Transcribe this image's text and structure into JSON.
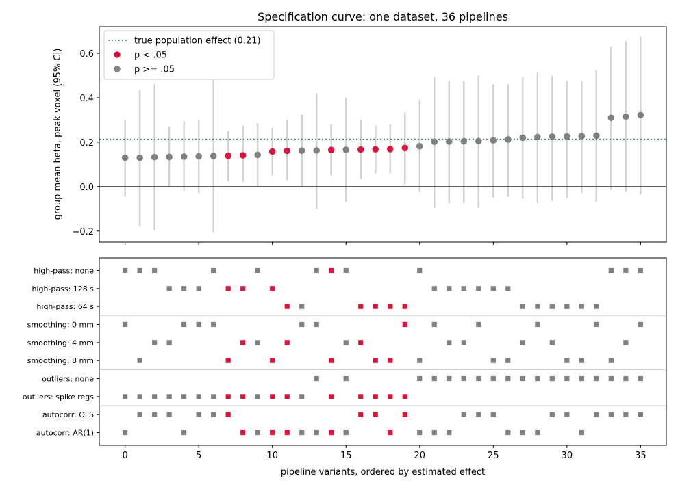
{
  "chart_data": [
    {
      "type": "scatter",
      "title": "Specification curve: one dataset, 36 pipelines",
      "ylabel": "group mean beta, peak voxel (95% CI)",
      "ylim": [
        -0.25,
        0.72
      ],
      "yticks": [
        -0.2,
        0.0,
        0.2,
        0.4,
        0.6
      ],
      "ytick_labels": [
        "−0.2",
        "0.0",
        "0.2",
        "0.4",
        "0.6"
      ],
      "xlim": [
        -1.75,
        36.75
      ],
      "grid": false,
      "legend_position": "top-left",
      "reference_line": {
        "label": "true population effect (0.21)",
        "value": 0.213,
        "color": "#2e8b57",
        "style": "dotted"
      },
      "zero_line": 0.0,
      "legend": [
        {
          "label": "true population effect (0.21)",
          "marker": "dotted-line",
          "color": "#2e8b57"
        },
        {
          "label": "p < .05",
          "marker": "dot",
          "color": "#dc143c"
        },
        {
          "label": "p >= .05",
          "marker": "dot",
          "color": "#808080"
        }
      ],
      "colors": {
        "significant": "#dc143c",
        "nonsignificant": "#808080",
        "ci": "#d3d3d3"
      },
      "x": [
        0,
        1,
        2,
        3,
        4,
        5,
        6,
        7,
        8,
        9,
        10,
        11,
        12,
        13,
        14,
        15,
        16,
        17,
        18,
        19,
        20,
        21,
        22,
        23,
        24,
        25,
        26,
        27,
        28,
        29,
        30,
        31,
        32,
        33,
        34,
        35
      ],
      "estimate": [
        0.13,
        0.13,
        0.133,
        0.134,
        0.135,
        0.136,
        0.138,
        0.139,
        0.141,
        0.143,
        0.158,
        0.161,
        0.162,
        0.163,
        0.165,
        0.166,
        0.167,
        0.168,
        0.169,
        0.174,
        0.182,
        0.202,
        0.203,
        0.204,
        0.205,
        0.208,
        0.212,
        0.22,
        0.223,
        0.225,
        0.226,
        0.227,
        0.229,
        0.31,
        0.315,
        0.322
      ],
      "ci_low": [
        -0.045,
        -0.18,
        -0.195,
        0.0,
        -0.02,
        -0.03,
        -0.205,
        0.025,
        0.02,
        0.0,
        0.05,
        0.03,
        0.0,
        -0.1,
        0.05,
        -0.07,
        0.035,
        0.06,
        0.06,
        0.01,
        -0.025,
        -0.095,
        -0.075,
        -0.075,
        -0.095,
        -0.05,
        -0.045,
        -0.055,
        -0.075,
        -0.065,
        -0.05,
        -0.03,
        -0.07,
        -0.015,
        -0.025,
        -0.035
      ],
      "ci_high": [
        0.3,
        0.435,
        0.46,
        0.27,
        0.295,
        0.3,
        0.48,
        0.25,
        0.275,
        0.285,
        0.265,
        0.3,
        0.325,
        0.42,
        0.28,
        0.4,
        0.3,
        0.275,
        0.28,
        0.335,
        0.39,
        0.495,
        0.475,
        0.475,
        0.5,
        0.46,
        0.46,
        0.495,
        0.515,
        0.5,
        0.475,
        0.475,
        0.525,
        0.63,
        0.655,
        0.675
      ],
      "significant": [
        false,
        false,
        false,
        false,
        false,
        false,
        false,
        true,
        true,
        false,
        true,
        true,
        false,
        false,
        true,
        false,
        true,
        true,
        true,
        true,
        false,
        false,
        false,
        false,
        false,
        false,
        false,
        false,
        false,
        false,
        false,
        false,
        false,
        false,
        false,
        false
      ]
    },
    {
      "type": "scatter",
      "xlabel": "pipeline variants, ordered by estimated effect",
      "xticks": [
        0,
        5,
        10,
        15,
        20,
        25,
        30,
        35
      ],
      "xlim": [
        -1.75,
        36.75
      ],
      "grid": false,
      "group_separators_after_row": [
        2,
        5,
        7
      ],
      "rows": [
        {
          "label": "high-pass: none",
          "pipelines": [
            0,
            1,
            2,
            6,
            9,
            13,
            14,
            15,
            20,
            33,
            34,
            35
          ]
        },
        {
          "label": "high-pass: 128 s",
          "pipelines": [
            3,
            4,
            5,
            7,
            8,
            10,
            21,
            22,
            23,
            24,
            25,
            26
          ]
        },
        {
          "label": "high-pass: 64 s",
          "pipelines": [
            11,
            12,
            16,
            17,
            18,
            19,
            27,
            28,
            29,
            30,
            31,
            32
          ]
        },
        {
          "label": "smoothing: 0 mm",
          "pipelines": [
            0,
            4,
            5,
            6,
            12,
            13,
            19,
            21,
            24,
            28,
            32,
            35
          ]
        },
        {
          "label": "smoothing: 4 mm",
          "pipelines": [
            2,
            3,
            8,
            9,
            11,
            15,
            16,
            22,
            23,
            27,
            29,
            34
          ]
        },
        {
          "label": "smoothing: 8 mm",
          "pipelines": [
            1,
            7,
            10,
            14,
            17,
            18,
            20,
            25,
            26,
            30,
            31,
            33
          ]
        },
        {
          "label": "outliers: none",
          "pipelines": [
            13,
            15,
            20,
            21,
            22,
            23,
            24,
            25,
            26,
            27,
            28,
            29,
            30,
            31,
            32,
            33,
            34,
            35
          ]
        },
        {
          "label": "outliers: spike regs",
          "pipelines": [
            0,
            1,
            2,
            3,
            4,
            5,
            6,
            7,
            8,
            9,
            10,
            11,
            12,
            14,
            16,
            17,
            18,
            19
          ]
        },
        {
          "label": "autocorr: OLS",
          "pipelines": [
            1,
            2,
            3,
            5,
            6,
            7,
            16,
            17,
            19,
            23,
            24,
            25,
            29,
            30,
            32,
            33,
            34,
            35
          ]
        },
        {
          "label": "autocorr: AR(1)",
          "pipelines": [
            0,
            4,
            8,
            9,
            10,
            11,
            12,
            13,
            14,
            15,
            18,
            20,
            21,
            22,
            26,
            27,
            28,
            31
          ]
        }
      ]
    }
  ]
}
